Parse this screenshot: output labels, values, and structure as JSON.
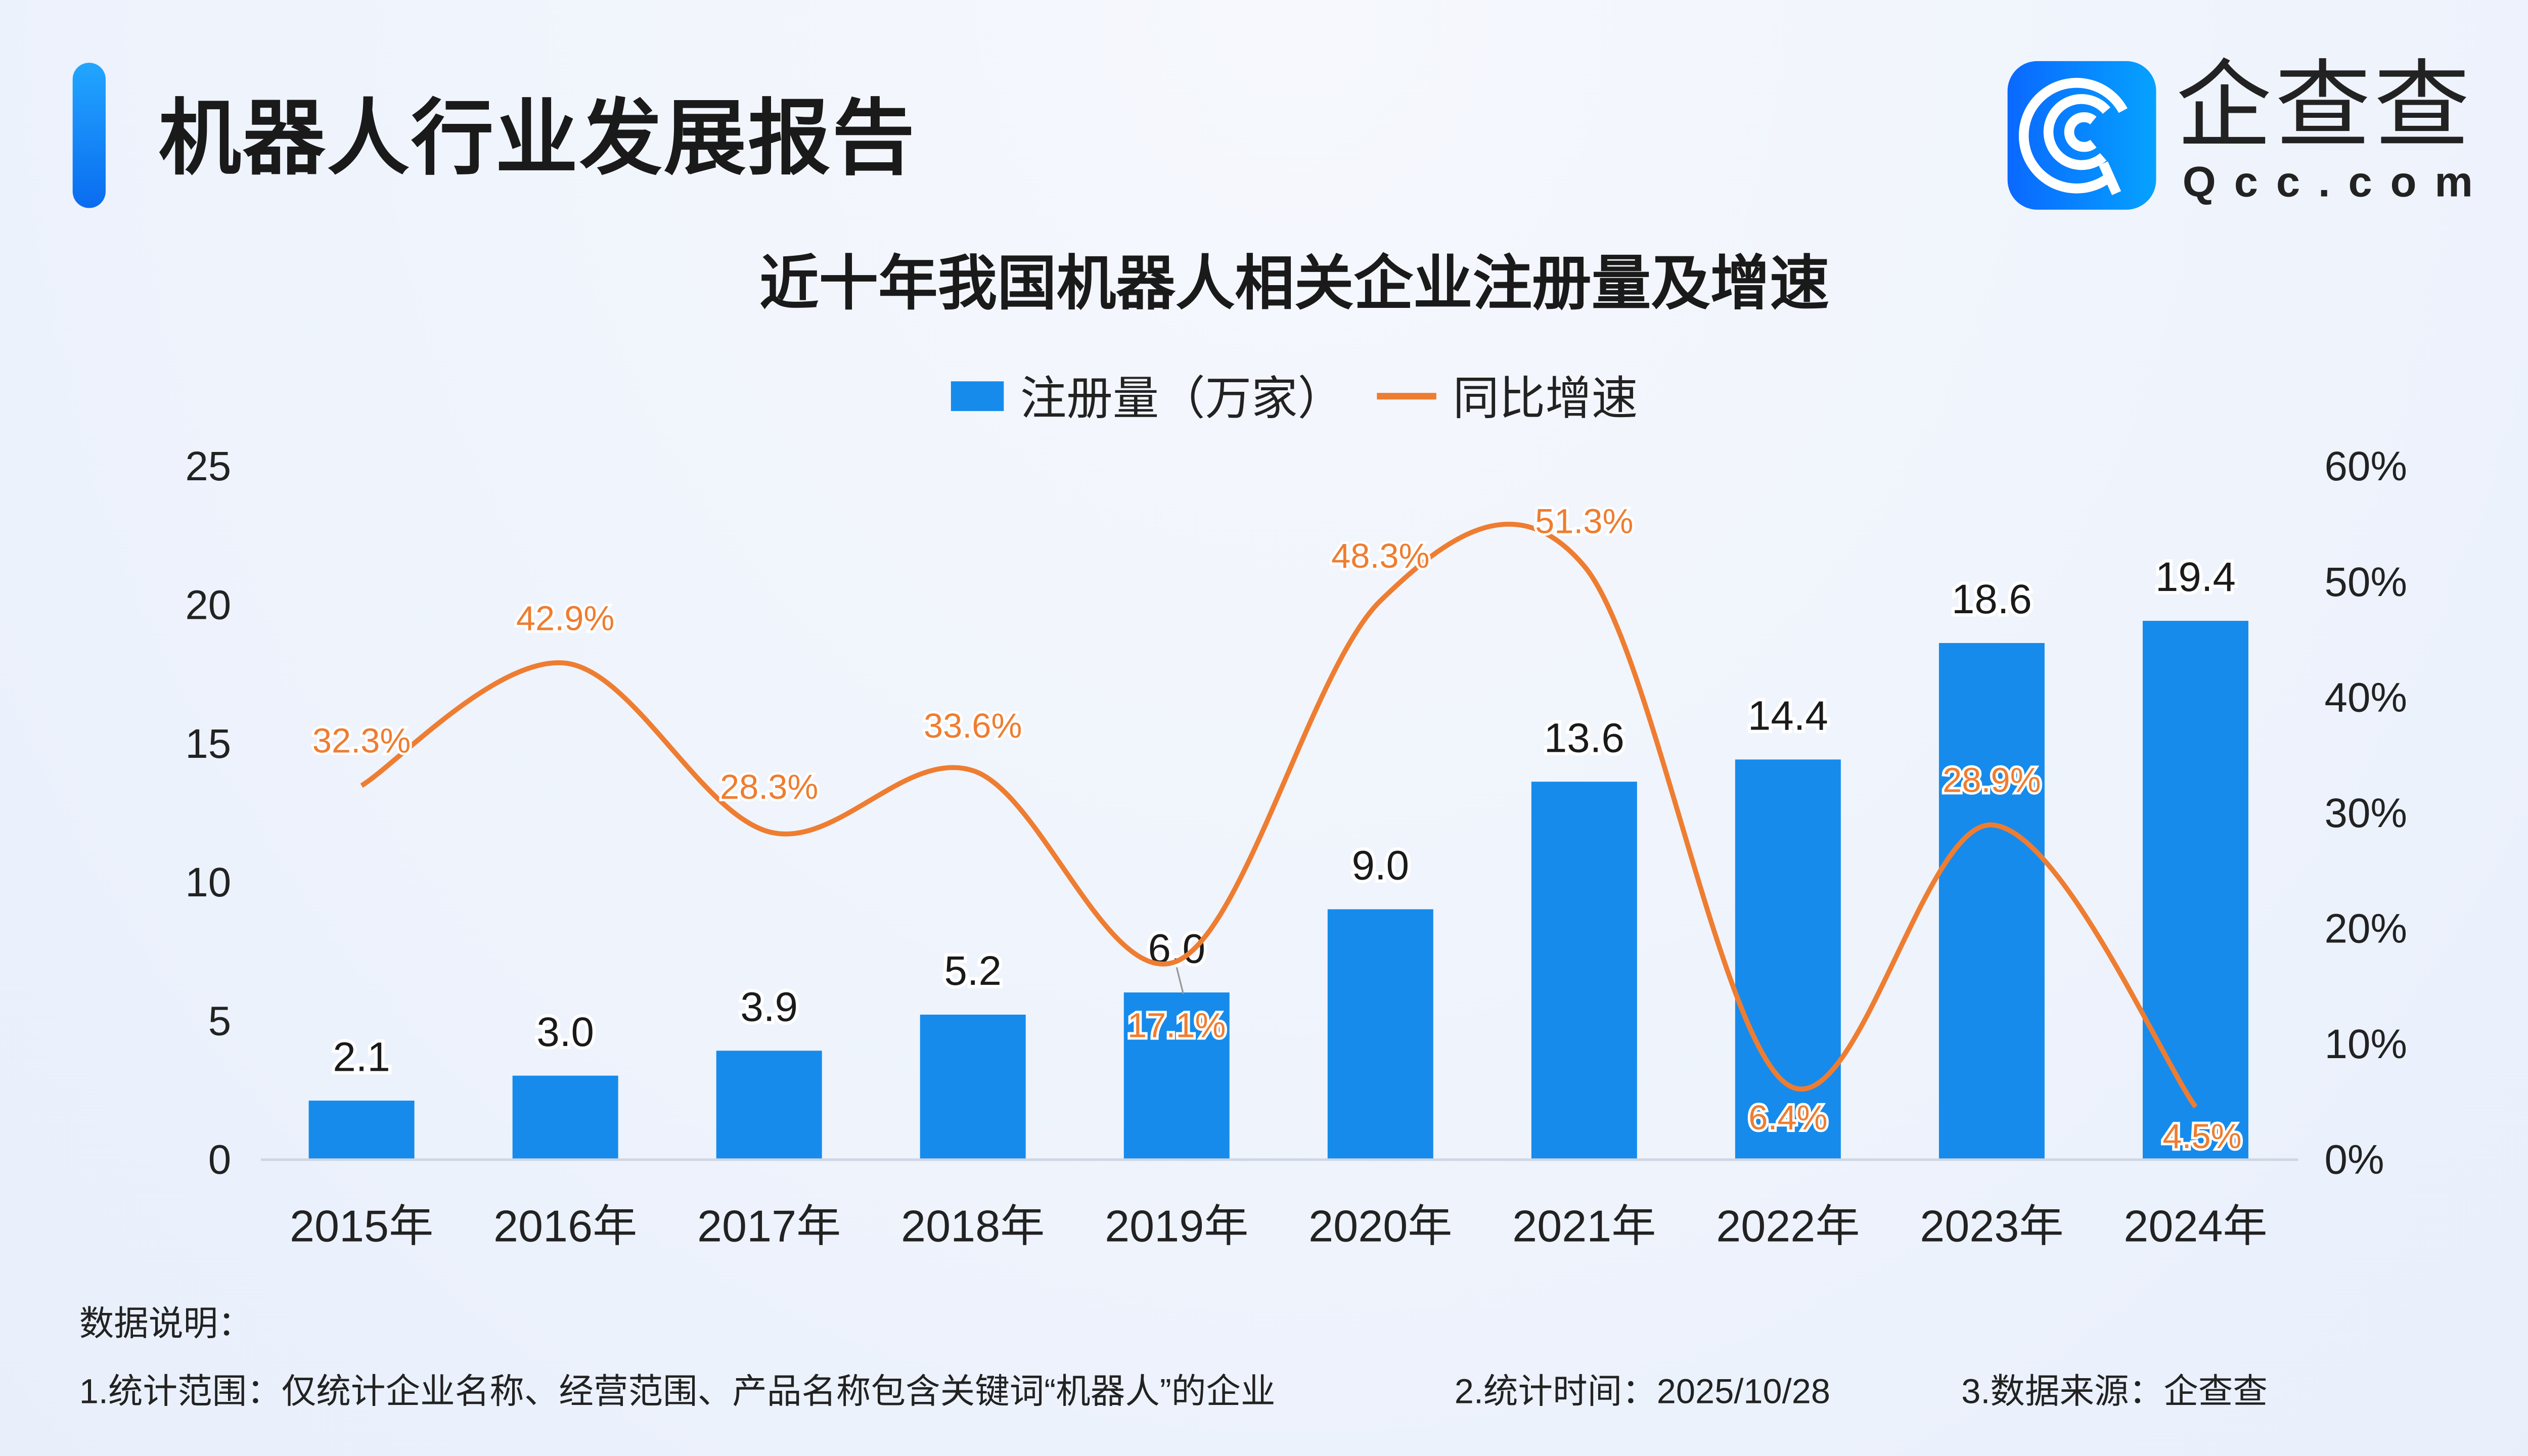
{
  "header": {
    "title": "机器人行业发展报告"
  },
  "logo": {
    "cn": "企查查",
    "en": "Qcc.com",
    "color": "#0a7dff"
  },
  "notes": {
    "heading": "数据说明：",
    "item1": "1.统计范围：仅统计企业名称、经营范围、产品名称包含关键词“机器人”的企业",
    "item2": "2.统计时间：2025/10/28",
    "item3": "3.数据来源：企查查"
  },
  "chart_data": {
    "type": "bar+line",
    "title": "近十年我国机器人相关企业注册量及增速",
    "categories": [
      "2015年",
      "2016年",
      "2017年",
      "2018年",
      "2019年",
      "2020年",
      "2021年",
      "2022年",
      "2023年",
      "2024年"
    ],
    "series": [
      {
        "name": "注册量（万家）",
        "type": "bar",
        "axis": "left",
        "color": "#168bec",
        "values": [
          2.1,
          3.0,
          3.9,
          5.2,
          6.0,
          9.0,
          13.6,
          14.4,
          18.6,
          19.4
        ],
        "labels": [
          "2.1",
          "3.0",
          "3.9",
          "5.2",
          "6.0",
          "9.0",
          "13.6",
          "14.4",
          "18.6",
          "19.4"
        ]
      },
      {
        "name": "同比增速",
        "type": "line",
        "axis": "right",
        "color": "#ee7d31",
        "values": [
          32.3,
          42.9,
          28.3,
          33.6,
          17.1,
          48.3,
          51.3,
          6.4,
          28.9,
          4.5
        ],
        "labels": [
          "32.3%",
          "42.9%",
          "28.3%",
          "33.6%",
          "17.1%",
          "48.3%",
          "51.3%",
          "6.4%",
          "28.9%",
          "4.5%"
        ]
      }
    ],
    "y_left": {
      "range": [
        0,
        25
      ],
      "ticks": [
        "0",
        "5",
        "10",
        "15",
        "20",
        "25"
      ]
    },
    "y_right": {
      "range": [
        0,
        60
      ],
      "ticks": [
        "0%",
        "10%",
        "20%",
        "30%",
        "40%",
        "50%",
        "60%"
      ]
    },
    "legend": "top",
    "grid": false
  }
}
